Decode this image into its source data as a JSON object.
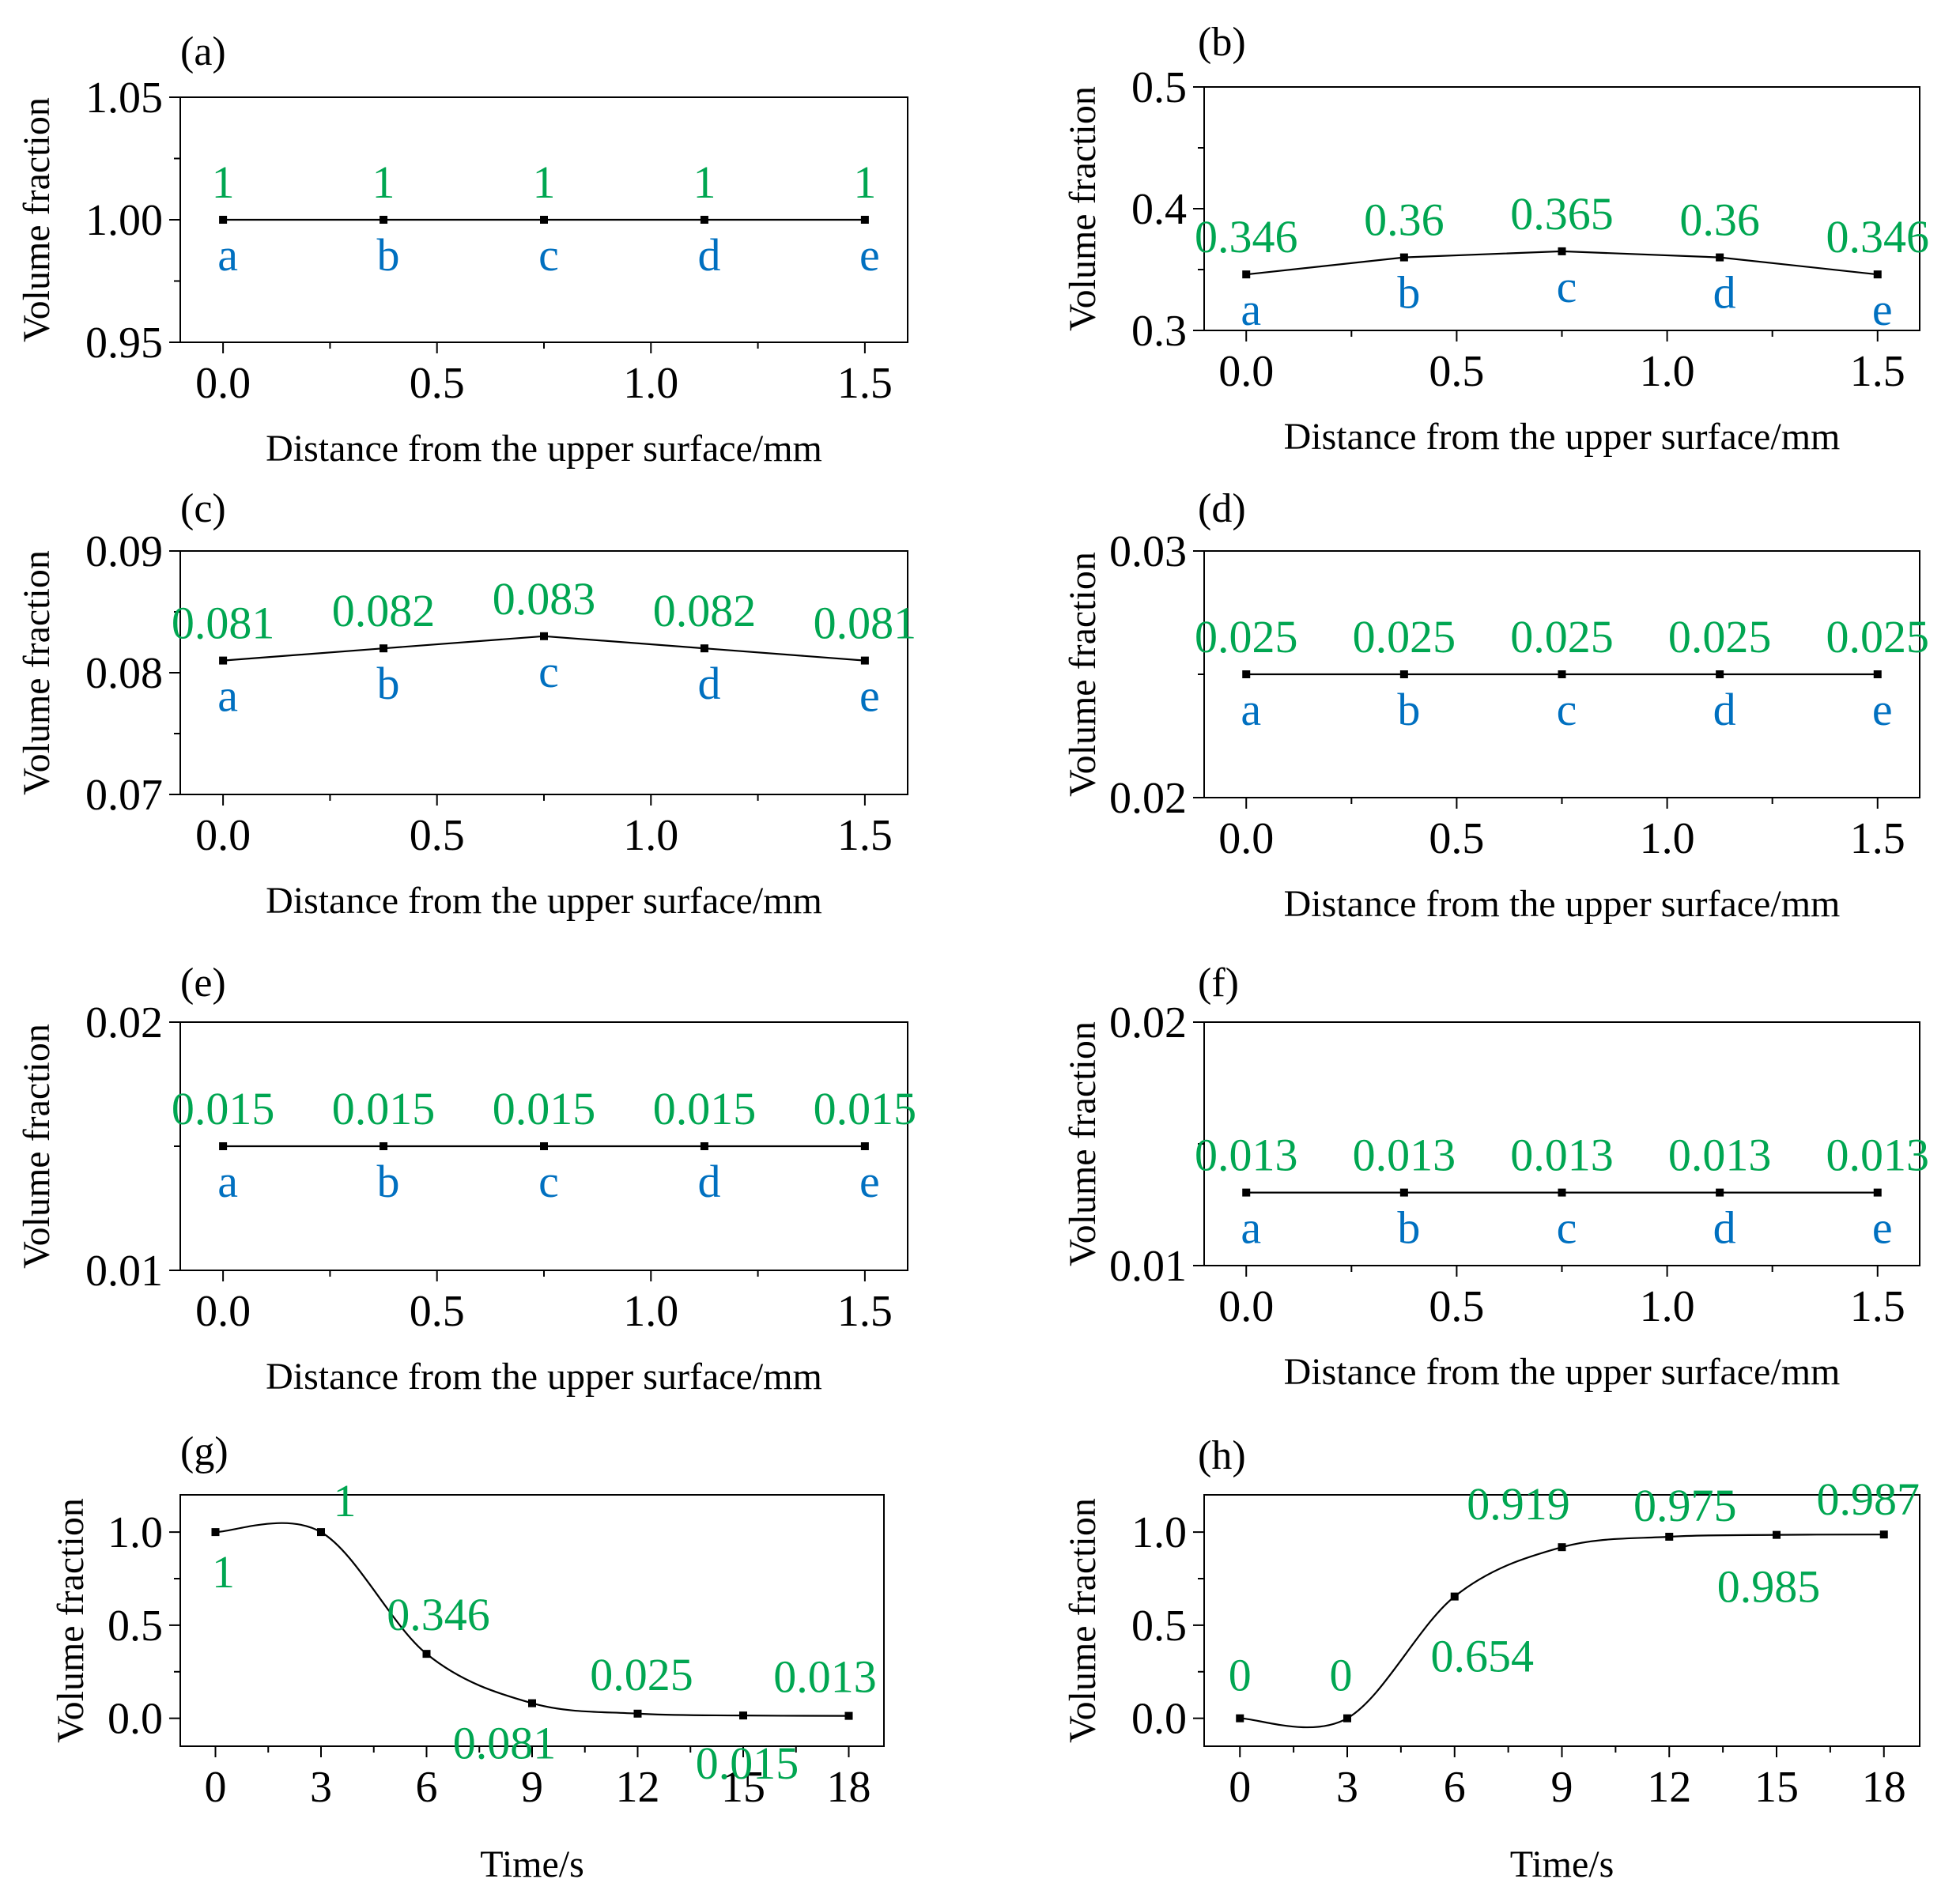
{
  "colors": {
    "value_label": "#00a651",
    "point_label": "#0070c0",
    "line": "#000000"
  },
  "chart_data": [
    {
      "panel": "(a)",
      "type": "line",
      "xlabel": "Distance from the upper surface/mm",
      "ylabel": "Volume fraction",
      "xlim": [
        -0.1,
        1.6
      ],
      "ylim": [
        0.95,
        1.05
      ],
      "xticks": [
        0.0,
        0.5,
        1.0,
        1.5
      ],
      "xtick_labels": [
        "0.0",
        "0.5",
        "1.0",
        "1.5"
      ],
      "yticks": [
        0.95,
        1.0,
        1.05
      ],
      "ytick_labels": [
        "0.95",
        "1.00",
        "1.05"
      ],
      "x": [
        0,
        0.375,
        0.75,
        1.125,
        1.5
      ],
      "values": [
        1,
        1,
        1,
        1,
        1
      ],
      "value_labels": [
        "1",
        "1",
        "1",
        "1",
        "1"
      ],
      "point_labels": [
        "a",
        "b",
        "c",
        "d",
        "e"
      ]
    },
    {
      "panel": "(b)",
      "type": "line",
      "xlabel": "Distance from the upper surface/mm",
      "ylabel": "Volume fraction",
      "xlim": [
        -0.1,
        1.6
      ],
      "ylim": [
        0.3,
        0.5
      ],
      "xticks": [
        0.0,
        0.5,
        1.0,
        1.5
      ],
      "xtick_labels": [
        "0.0",
        "0.5",
        "1.0",
        "1.5"
      ],
      "yticks": [
        0.3,
        0.4,
        0.5
      ],
      "ytick_labels": [
        "0.3",
        "0.4",
        "0.5"
      ],
      "x": [
        0,
        0.375,
        0.75,
        1.125,
        1.5
      ],
      "values": [
        0.346,
        0.36,
        0.365,
        0.36,
        0.346
      ],
      "value_labels": [
        "0.346",
        "0.36",
        "0.365",
        "0.36",
        "0.346"
      ],
      "point_labels": [
        "a",
        "b",
        "c",
        "d",
        "e"
      ]
    },
    {
      "panel": "(c)",
      "type": "line",
      "xlabel": "Distance from the upper surface/mm",
      "ylabel": "Volume fraction",
      "xlim": [
        -0.1,
        1.6
      ],
      "ylim": [
        0.07,
        0.09
      ],
      "xticks": [
        0.0,
        0.5,
        1.0,
        1.5
      ],
      "xtick_labels": [
        "0.0",
        "0.5",
        "1.0",
        "1.5"
      ],
      "yticks": [
        0.07,
        0.08,
        0.09
      ],
      "ytick_labels": [
        "0.07",
        "0.08",
        "0.09"
      ],
      "x": [
        0,
        0.375,
        0.75,
        1.125,
        1.5
      ],
      "values": [
        0.081,
        0.082,
        0.083,
        0.082,
        0.081
      ],
      "value_labels": [
        "0.081",
        "0.082",
        "0.083",
        "0.082",
        "0.081"
      ],
      "point_labels": [
        "a",
        "b",
        "c",
        "d",
        "e"
      ]
    },
    {
      "panel": "(d)",
      "type": "line",
      "xlabel": "Distance from the upper surface/mm",
      "ylabel": "Volume fraction",
      "xlim": [
        -0.1,
        1.6
      ],
      "ylim": [
        0.02,
        0.03
      ],
      "xticks": [
        0.0,
        0.5,
        1.0,
        1.5
      ],
      "xtick_labels": [
        "0.0",
        "0.5",
        "1.0",
        "1.5"
      ],
      "yticks": [
        0.02,
        0.03
      ],
      "ytick_labels": [
        "0.02",
        "0.03"
      ],
      "x": [
        0,
        0.375,
        0.75,
        1.125,
        1.5
      ],
      "values": [
        0.025,
        0.025,
        0.025,
        0.025,
        0.025
      ],
      "value_labels": [
        "0.025",
        "0.025",
        "0.025",
        "0.025",
        "0.025"
      ],
      "point_labels": [
        "a",
        "b",
        "c",
        "d",
        "e"
      ]
    },
    {
      "panel": "(e)",
      "type": "line",
      "xlabel": "Distance from the upper surface/mm",
      "ylabel": "Volume fraction",
      "xlim": [
        -0.1,
        1.6
      ],
      "ylim": [
        0.01,
        0.02
      ],
      "xticks": [
        0.0,
        0.5,
        1.0,
        1.5
      ],
      "xtick_labels": [
        "0.0",
        "0.5",
        "1.0",
        "1.5"
      ],
      "yticks": [
        0.01,
        0.02
      ],
      "ytick_labels": [
        "0.01",
        "0.02"
      ],
      "x": [
        0,
        0.375,
        0.75,
        1.125,
        1.5
      ],
      "values": [
        0.015,
        0.015,
        0.015,
        0.015,
        0.015
      ],
      "value_labels": [
        "0.015",
        "0.015",
        "0.015",
        "0.015",
        "0.015"
      ],
      "point_labels": [
        "a",
        "b",
        "c",
        "d",
        "e"
      ]
    },
    {
      "panel": "(f)",
      "type": "line",
      "xlabel": "Distance from the upper surface/mm",
      "ylabel": "Volume fraction",
      "xlim": [
        -0.1,
        1.6
      ],
      "ylim": [
        0.01,
        0.02
      ],
      "xticks": [
        0.0,
        0.5,
        1.0,
        1.5
      ],
      "xtick_labels": [
        "0.0",
        "0.5",
        "1.0",
        "1.5"
      ],
      "yticks": [
        0.01,
        0.02
      ],
      "ytick_labels": [
        "0.01",
        "0.02"
      ],
      "x": [
        0,
        0.375,
        0.75,
        1.125,
        1.5
      ],
      "values": [
        0.013,
        0.013,
        0.013,
        0.013,
        0.013
      ],
      "value_labels": [
        "0.013",
        "0.013",
        "0.013",
        "0.013",
        "0.013"
      ],
      "point_labels": [
        "a",
        "b",
        "c",
        "d",
        "e"
      ]
    },
    {
      "panel": "(g)",
      "type": "line",
      "smooth": true,
      "xlabel": "Time/s",
      "ylabel": "Volume fraction",
      "xlim": [
        -1,
        19
      ],
      "ylim": [
        -0.15,
        1.2
      ],
      "xticks": [
        0,
        3,
        6,
        9,
        12,
        15,
        18
      ],
      "xtick_labels": [
        "0",
        "3",
        "6",
        "9",
        "12",
        "15",
        "18"
      ],
      "yticks": [
        0.0,
        0.5,
        1.0
      ],
      "ytick_labels": [
        "0.0",
        "0.5",
        "1.0"
      ],
      "x": [
        0,
        3,
        6,
        9,
        12,
        15,
        18
      ],
      "values": [
        1,
        1,
        0.346,
        0.081,
        0.025,
        0.015,
        0.013
      ],
      "value_labels": [
        "1",
        "1",
        "0.346",
        "0.081",
        "0.025",
        "0.015",
        "0.013"
      ]
    },
    {
      "panel": "(h)",
      "type": "line",
      "smooth": true,
      "xlabel": "Time/s",
      "ylabel": "Volume fraction",
      "xlim": [
        -1,
        19
      ],
      "ylim": [
        -0.15,
        1.2
      ],
      "xticks": [
        0,
        3,
        6,
        9,
        12,
        15,
        18
      ],
      "xtick_labels": [
        "0",
        "3",
        "6",
        "9",
        "12",
        "15",
        "18"
      ],
      "yticks": [
        0.0,
        0.5,
        1.0
      ],
      "ytick_labels": [
        "0.0",
        "0.5",
        "1.0"
      ],
      "x": [
        0,
        3,
        6,
        9,
        12,
        15,
        18
      ],
      "values": [
        0,
        0,
        0.654,
        0.919,
        0.975,
        0.985,
        0.987
      ],
      "value_labels": [
        "0",
        "0",
        "0.654",
        "0.919",
        "0.975",
        "0.985",
        "0.987"
      ]
    }
  ]
}
